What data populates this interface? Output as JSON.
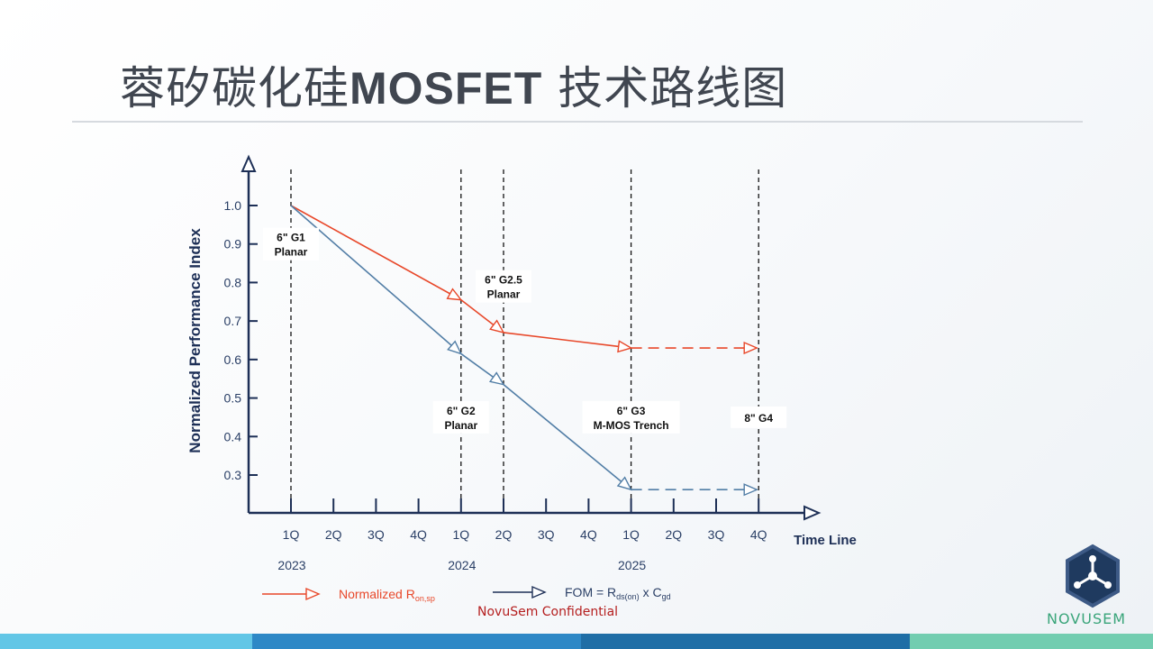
{
  "page": {
    "title_cn_1": "蓉矽碳化硅",
    "title_bold": "MOSFET",
    "title_cn_2": " 技术路线图",
    "confidential": "NovuSem Confidential",
    "logo_text": "NOVUSEM",
    "footer_colors": [
      "#62c6e6",
      "#2e88c6",
      "#1f6ea6",
      "#72cdb0"
    ]
  },
  "chart_data": {
    "type": "line",
    "ylabel": "Normalized Performance Index",
    "xlabel": "Time Line",
    "ylim": [
      0.3,
      1.0
    ],
    "yticks": [
      "1.0",
      "0.9",
      "0.8",
      "0.7",
      "0.6",
      "0.5",
      "0.4",
      "0.3"
    ],
    "quarters": [
      "1Q",
      "2Q",
      "3Q",
      "4Q",
      "1Q",
      "2Q",
      "3Q",
      "4Q",
      "1Q",
      "2Q",
      "3Q",
      "4Q"
    ],
    "years": [
      {
        "label": "2023",
        "quarter_index": 0
      },
      {
        "label": "2024",
        "quarter_index": 4
      },
      {
        "label": "2025",
        "quarter_index": 8
      }
    ],
    "milestones": [
      {
        "quarter_index": 0,
        "line1": "6\" G1",
        "line2": "Planar",
        "label_y": 0.9
      },
      {
        "quarter_index": 4,
        "line1": "6\" G2",
        "line2": "Planar",
        "label_y": 0.45
      },
      {
        "quarter_index": 5,
        "line1": "6\" G2.5",
        "line2": "Planar",
        "label_y": 0.79
      },
      {
        "quarter_index": 8,
        "line1": "6\" G3",
        "line2": "M-MOS Trench",
        "label_y": 0.45
      },
      {
        "quarter_index": 11,
        "line1": "8\" G4",
        "line2": "",
        "label_y": 0.45
      }
    ],
    "series": [
      {
        "name": "Normalized R",
        "name_sub": "on,sp",
        "color": "#e8482a",
        "points": [
          [
            0,
            1.0
          ],
          [
            4,
            0.755
          ],
          [
            5,
            0.67
          ],
          [
            8,
            0.63
          ]
        ],
        "projection": [
          [
            8,
            0.63
          ],
          [
            11,
            0.63
          ]
        ]
      },
      {
        "name": "FOM = R",
        "name_sub": "ds(on)",
        "name_rest": " x C",
        "name_sub2": "gd",
        "color": "#527ea6",
        "points": [
          [
            0,
            1.0
          ],
          [
            4,
            0.615
          ],
          [
            5,
            0.535
          ],
          [
            8,
            0.262
          ]
        ],
        "projection": [
          [
            8,
            0.262
          ],
          [
            11,
            0.262
          ]
        ]
      }
    ],
    "legend_position": "bottom"
  }
}
